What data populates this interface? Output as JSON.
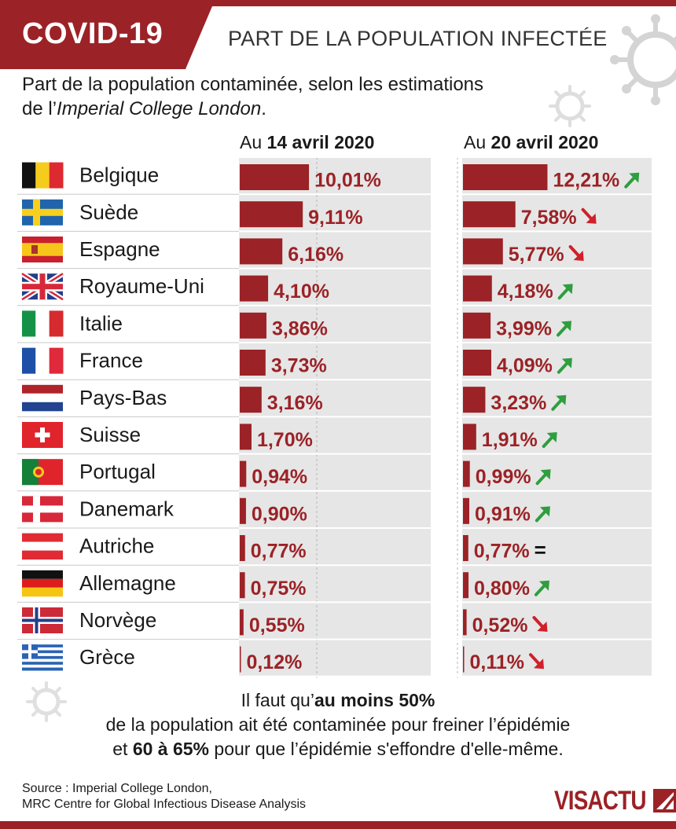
{
  "header": {
    "badge": "COVID-19",
    "title": "PART DE LA POPULATION INFECTÉE"
  },
  "subtitle": {
    "line1": "Part de la population contaminée, selon les estimations",
    "line2_prefix": "de l’",
    "line2_emph": "Imperial College London",
    "line2_suffix": "."
  },
  "columns": {
    "left_prefix": "Au ",
    "left_bold": "14 avril 2020",
    "right_prefix": "Au ",
    "right_bold": "20 avril 2020"
  },
  "chart_data": {
    "type": "bar",
    "categories": [
      "Belgique",
      "Suède",
      "Espagne",
      "Royaume-Uni",
      "Italie",
      "France",
      "Pays-Bas",
      "Suisse",
      "Portugal",
      "Danemark",
      "Autriche",
      "Allemagne",
      "Norvège",
      "Grèce"
    ],
    "series": [
      {
        "name": "Au 14 avril 2020",
        "values": [
          10.01,
          9.11,
          6.16,
          4.1,
          3.86,
          3.73,
          3.16,
          1.7,
          0.94,
          0.9,
          0.77,
          0.75,
          0.55,
          0.12
        ],
        "labels": [
          "10,01%",
          "9,11%",
          "6,16%",
          "4,10%",
          "3,86%",
          "3,73%",
          "3,16%",
          "1,70%",
          "0,94%",
          "0,90%",
          "0,77%",
          "0,75%",
          "0,55%",
          "0,12%"
        ]
      },
      {
        "name": "Au 20 avril 2020",
        "values": [
          12.21,
          7.58,
          5.77,
          4.18,
          3.99,
          4.09,
          3.23,
          1.91,
          0.99,
          0.91,
          0.77,
          0.8,
          0.52,
          0.11
        ],
        "labels": [
          "12,21%",
          "7,58%",
          "5,77%",
          "4,18%",
          "3,99%",
          "4,09%",
          "3,23%",
          "1,91%",
          "0,99%",
          "0,91%",
          "0,77%",
          "0,80%",
          "0,52%",
          "0,11%"
        ],
        "trend": [
          "up",
          "down",
          "down",
          "up",
          "up",
          "up",
          "up",
          "up",
          "up",
          "up",
          "equal",
          "up",
          "down",
          "down"
        ]
      }
    ],
    "flags": [
      "belgium",
      "sweden",
      "spain",
      "uk",
      "italy",
      "france",
      "netherlands",
      "switzerland",
      "portugal",
      "denmark",
      "austria",
      "germany",
      "norway",
      "greece"
    ],
    "colors": {
      "bar": "#9b2226",
      "label": "#9b2226",
      "up": "#2e9e3f",
      "down": "#d0202a",
      "equal": "#111111",
      "panel": "#e6e6e6"
    },
    "equal_symbol": "="
  },
  "footnote": {
    "l1_prefix": "Il faut qu’",
    "l1_bold": "au moins 50%",
    "l2": "de la population ait été contaminée pour freiner l’épidémie",
    "l3_prefix": "et ",
    "l3_bold": "60 à 65%",
    "l3_suffix": " pour que l’épidémie s'effondre d'elle-même."
  },
  "source": {
    "line1": "Source : Imperial College London,",
    "line2": "MRC Centre for Global Infectious Disease Analysis"
  },
  "logo": {
    "text": "VISACTU"
  }
}
